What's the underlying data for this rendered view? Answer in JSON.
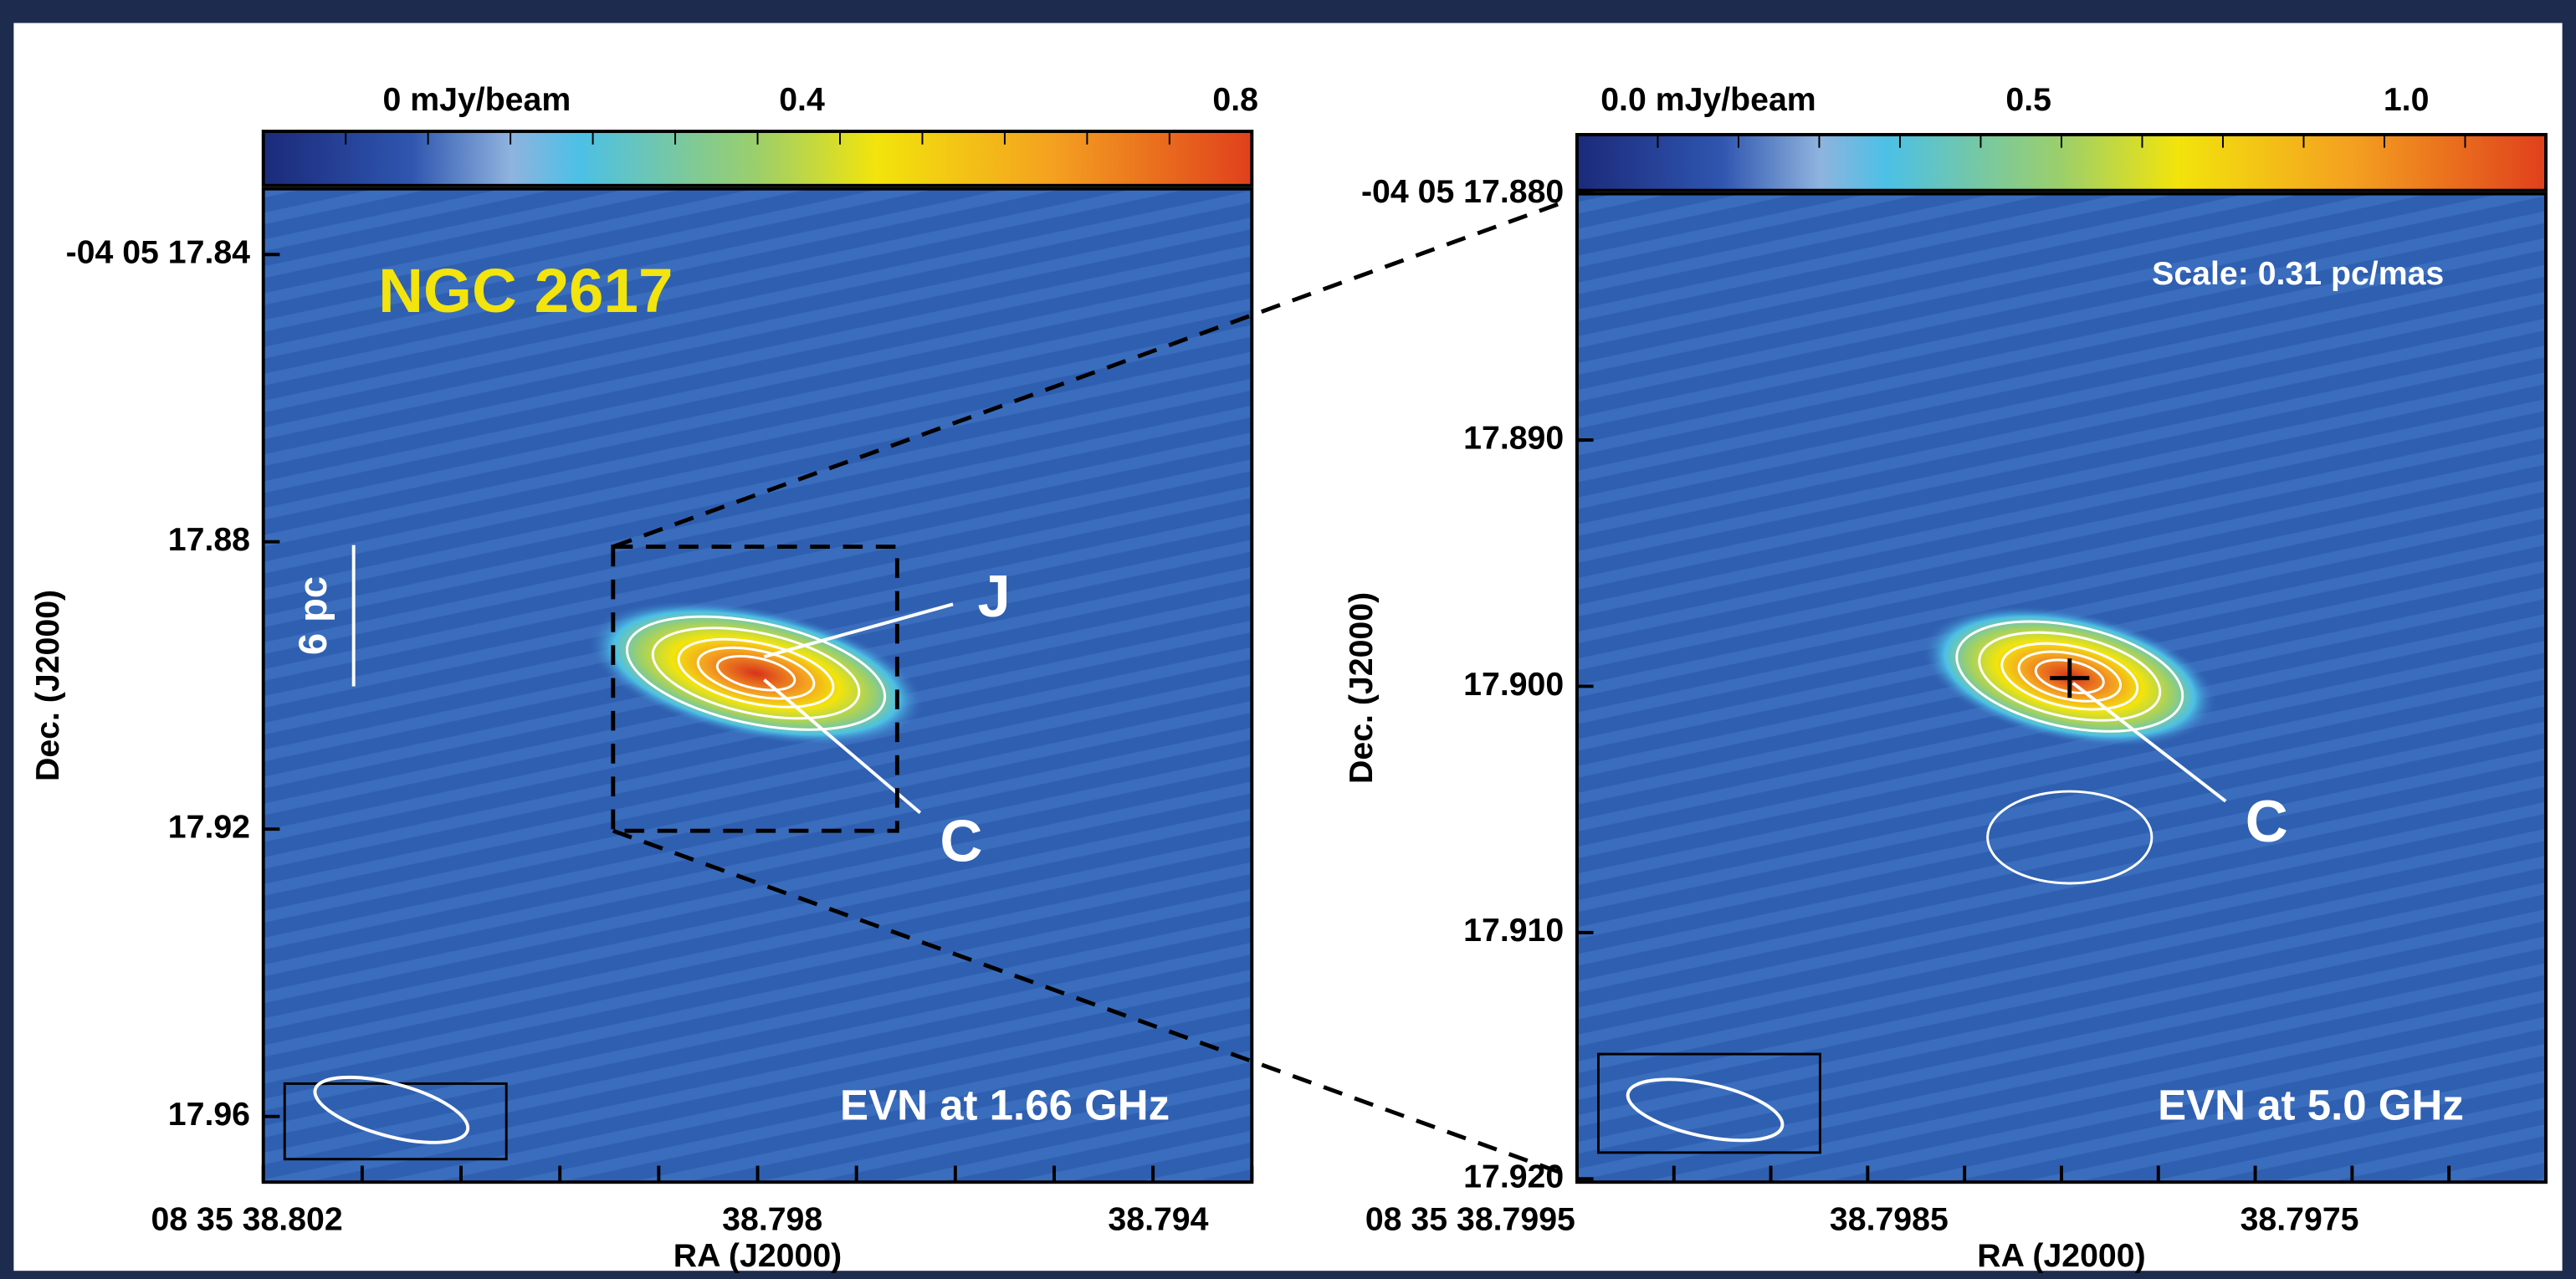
{
  "panels": [
    {
      "colorbar_ticks": [
        "0 mJy/beam",
        "0.4",
        "0.8"
      ],
      "y_ticks": [
        "-04 05 17.84",
        "17.88",
        "17.92",
        "17.96"
      ],
      "x_ticks": [
        "08 35 38.802",
        "38.798",
        "38.794"
      ],
      "x_label": "RA (J2000)",
      "y_label": "Dec. (J2000)",
      "source": "NGC 2617",
      "scale_bar": "6 pc",
      "components": [
        "J",
        "C"
      ],
      "caption": "EVN at 1.66 GHz"
    },
    {
      "colorbar_ticks": [
        "0.0 mJy/beam",
        "0.5",
        "1.0"
      ],
      "y_ticks": [
        "-04 05 17.880",
        "17.890",
        "17.900",
        "17.910",
        "17.920"
      ],
      "x_ticks": [
        "08 35 38.7995",
        "38.7985",
        "38.7975"
      ],
      "x_label": "RA (J2000)",
      "y_label": "Dec. (J2000)",
      "scale": "Scale: 0.31 pc/mas",
      "components": [
        "C"
      ],
      "caption": "EVN at 5.0 GHz"
    }
  ]
}
